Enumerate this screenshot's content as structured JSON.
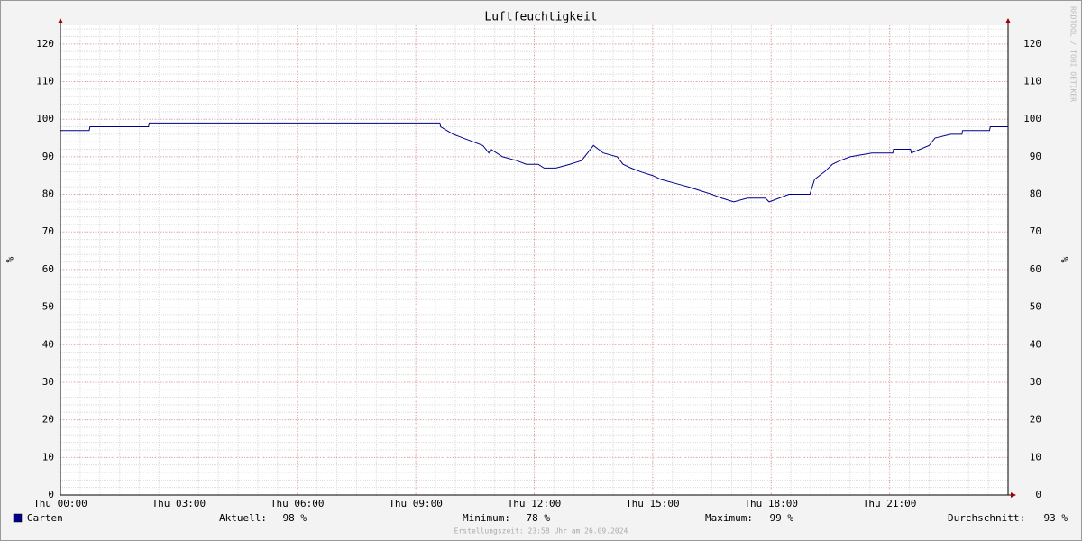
{
  "chart_data": {
    "type": "line",
    "title": "Luftfeuchtigkeit",
    "y_label": "%",
    "watermark": "RRDTOOL / TOBI OETIKER",
    "footer": "Erstellungszeit: 23:58 Uhr am 26.09.2024",
    "xlim": [
      0,
      24
    ],
    "xticks": [
      {
        "value": 0,
        "label": "Thu 00:00"
      },
      {
        "value": 3,
        "label": "Thu 03:00"
      },
      {
        "value": 6,
        "label": "Thu 06:00"
      },
      {
        "value": 9,
        "label": "Thu 09:00"
      },
      {
        "value": 12,
        "label": "Thu 12:00"
      },
      {
        "value": 15,
        "label": "Thu 15:00"
      },
      {
        "value": 18,
        "label": "Thu 18:00"
      },
      {
        "value": 21,
        "label": "Thu 21:00"
      }
    ],
    "ylim": [
      0,
      125
    ],
    "yticks": [
      0,
      10,
      20,
      30,
      40,
      50,
      60,
      70,
      80,
      90,
      100,
      110,
      120
    ],
    "minor_grid": {
      "x": 0.5,
      "y": 2
    },
    "grid": true,
    "series": [
      {
        "name": "Garten",
        "color": "#00008b",
        "x": [
          0,
          0.73,
          0.75,
          2.23,
          2.25,
          9.61,
          9.63,
          9.95,
          10.2,
          10.45,
          10.7,
          10.85,
          10.9,
          11.2,
          11.55,
          11.8,
          12.1,
          12.25,
          12.55,
          12.9,
          13.2,
          13.35,
          13.5,
          13.75,
          14.1,
          14.25,
          14.45,
          14.7,
          15.0,
          15.2,
          15.55,
          15.9,
          16.2,
          16.5,
          16.75,
          17.05,
          17.4,
          17.85,
          17.95,
          18.2,
          18.45,
          18.98,
          19.1,
          19.35,
          19.55,
          19.75,
          20.0,
          20.55,
          21.08,
          21.1,
          21.53,
          21.55,
          22.0,
          22.15,
          22.55,
          22.83,
          22.85,
          23.53,
          23.55,
          24
        ],
        "values": [
          97,
          97,
          98,
          98,
          99,
          99,
          98,
          96,
          95,
          94,
          93,
          91,
          92,
          90,
          89,
          88,
          88,
          87,
          87,
          88,
          89,
          91,
          93,
          91,
          90,
          88,
          87,
          86,
          85,
          84,
          83,
          82,
          81,
          80,
          79,
          78,
          79,
          79,
          78,
          79,
          80,
          80,
          84,
          86,
          88,
          89,
          90,
          91,
          91,
          92,
          92,
          91,
          93,
          95,
          96,
          96,
          97,
          97,
          98,
          98
        ]
      }
    ],
    "stats": [
      {
        "name": "Aktuell:",
        "text": "98 %"
      },
      {
        "name": "Minimum:",
        "text": "78 %"
      },
      {
        "name": "Maximum:",
        "text": "99 %"
      },
      {
        "name": "Durchschnitt:",
        "text": "93 %"
      }
    ]
  }
}
